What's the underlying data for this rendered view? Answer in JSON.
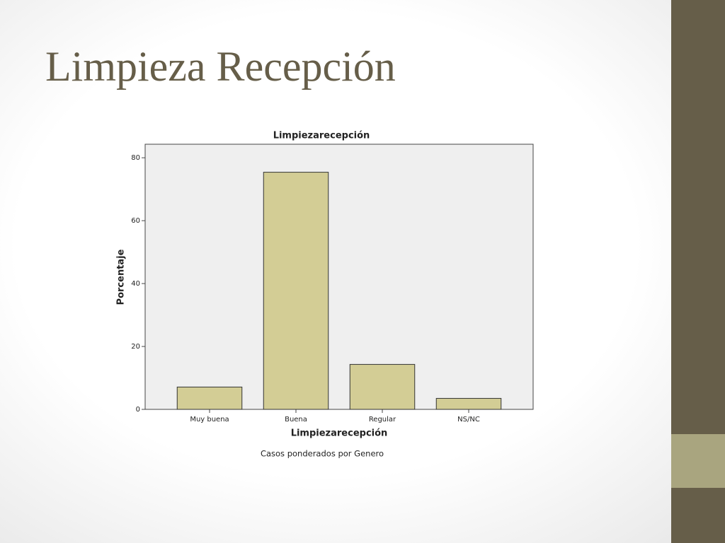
{
  "title": "Limpieza Recepción",
  "chart_data": {
    "type": "bar",
    "title": "Limpiezarecepción",
    "x_label": "Limpiezarecepción",
    "y_label": "Porcentaje",
    "annotation": "Casos ponderados por Genero",
    "categories": [
      "Muy buena",
      "Buena",
      "Regular",
      "NS/NC"
    ],
    "values": [
      7.1,
      75.4,
      14.3,
      3.5
    ],
    "color": "#d3cd95",
    "ylim": [
      0,
      84.3
    ],
    "yticks": [
      0,
      20,
      40,
      60,
      80
    ]
  }
}
